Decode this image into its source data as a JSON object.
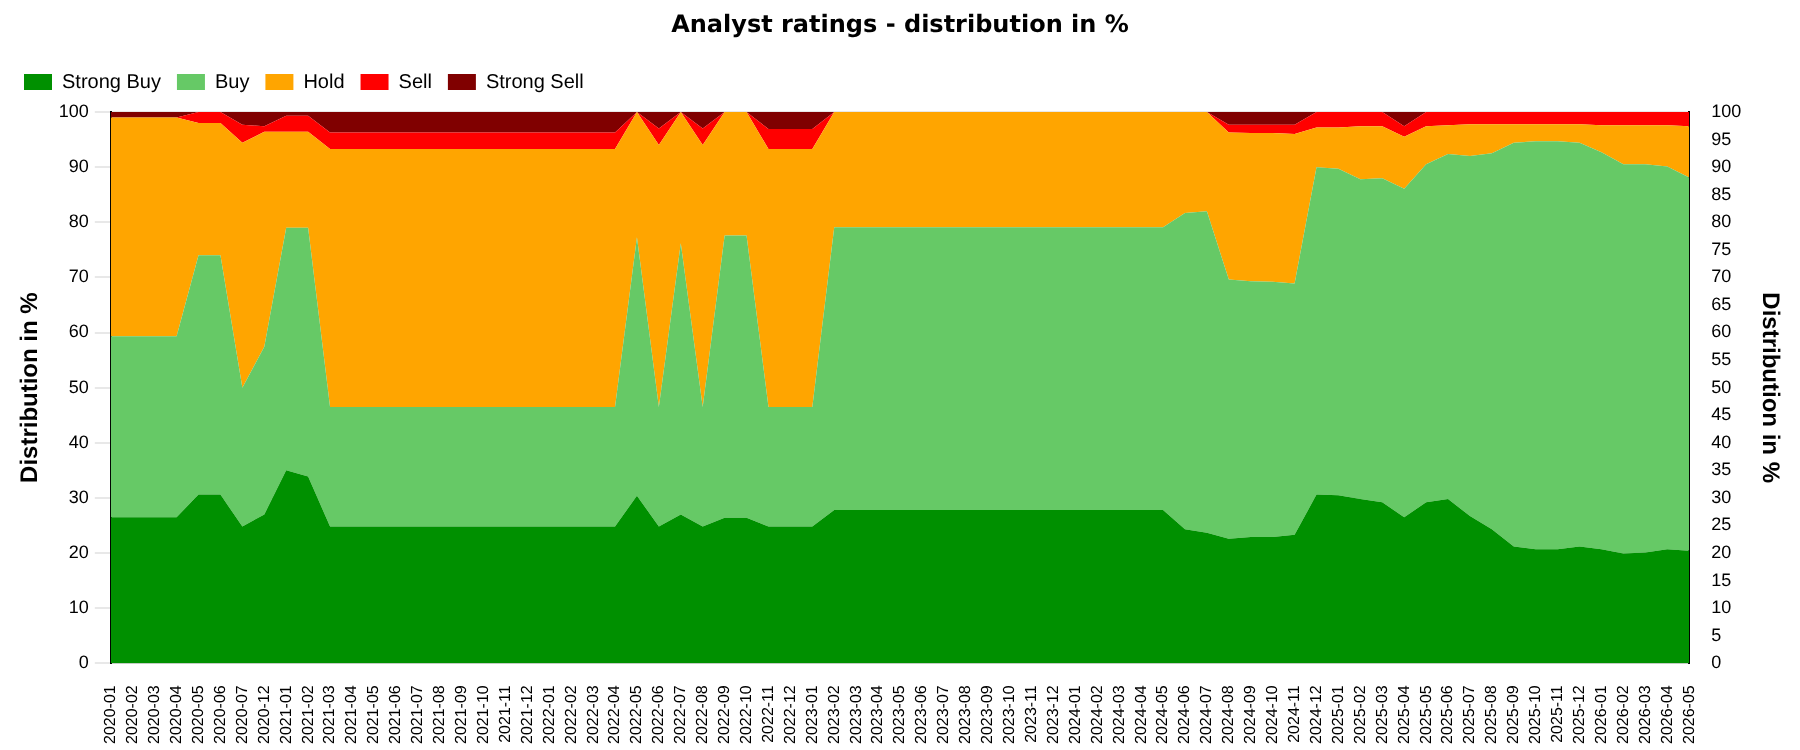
{
  "chart_data": {
    "type": "area",
    "title": "Analyst ratings - distribution in %",
    "ylabel": "Distribution in %",
    "y2label": "Distribution in %",
    "categories": [
      "2020-01",
      "2020-02",
      "2020-03",
      "2020-04",
      "2020-05",
      "2020-06",
      "2020-07",
      "2020-12",
      "2021-01",
      "2021-02",
      "2021-03",
      "2021-04",
      "2021-05",
      "2021-06",
      "2021-07",
      "2021-08",
      "2021-09",
      "2021-10",
      "2021-11",
      "2021-12",
      "2022-01",
      "2022-02",
      "2022-03",
      "2022-04",
      "2022-05",
      "2022-06",
      "2022-07",
      "2022-08",
      "2022-09",
      "2022-10",
      "2022-11",
      "2022-12",
      "2023-01",
      "2023-02",
      "2023-03",
      "2023-04",
      "2023-05",
      "2023-06",
      "2023-07",
      "2023-08",
      "2023-09",
      "2023-10",
      "2023-11",
      "2023-12",
      "2024-01",
      "2024-02",
      "2024-03",
      "2024-04",
      "2024-05",
      "2024-06",
      "2024-07",
      "2024-08",
      "2024-09",
      "2024-10",
      "2024-11",
      "2024-12",
      "2025-01",
      "2025-02",
      "2025-03",
      "2025-04",
      "2025-05",
      "2025-06",
      "2025-07",
      "2025-08",
      "2025-09",
      "2025-10",
      "2025-11",
      "2025-12",
      "2026-01",
      "2026-02",
      "2026-03",
      "2026-04",
      "2026-05"
    ],
    "series": [
      {
        "name": "Strong Buy",
        "color": "#009000",
        "values": [
          26.5,
          26.5,
          26.5,
          26.5,
          30.6,
          30.6,
          24.8,
          27,
          35,
          33.9,
          24.8,
          24.8,
          24.8,
          24.8,
          24.8,
          24.8,
          24.8,
          24.8,
          24.8,
          24.8,
          24.8,
          24.8,
          24.8,
          24.8,
          30.4,
          24.8,
          27,
          24.8,
          26.4,
          26.4,
          24.8,
          24.8,
          24.8,
          27.8,
          27.8,
          27.8,
          27.8,
          27.8,
          27.8,
          27.8,
          27.8,
          27.8,
          27.8,
          27.8,
          27.8,
          27.8,
          27.8,
          27.8,
          27.8,
          24.3,
          23.7,
          22.6,
          22.9,
          22.9,
          23.3,
          30.6,
          30.5,
          29.8,
          29.2,
          26.5,
          29.2,
          29.8,
          26.7,
          24.3,
          21.2,
          20.7,
          20.7,
          21.2,
          20.7,
          19.9,
          20.1,
          20.7,
          20.4
        ]
      },
      {
        "name": "Buy",
        "color": "#66c966",
        "values": [
          32.8,
          32.8,
          32.8,
          32.8,
          43.4,
          43.4,
          25.2,
          30.4,
          44,
          45.1,
          21.7,
          21.7,
          21.7,
          21.7,
          21.7,
          21.7,
          21.7,
          21.7,
          21.7,
          21.7,
          21.7,
          21.7,
          21.7,
          21.7,
          46.9,
          21.7,
          49.2,
          21.7,
          51.2,
          51.2,
          21.7,
          21.7,
          21.7,
          51.3,
          51.3,
          51.3,
          51.3,
          51.3,
          51.3,
          51.3,
          51.3,
          51.3,
          51.3,
          51.3,
          51.3,
          51.3,
          51.3,
          51.3,
          51.3,
          57.4,
          58.3,
          47,
          46.4,
          46.3,
          45.6,
          59.4,
          59.2,
          58,
          58.8,
          59.6,
          61.3,
          62.6,
          65.3,
          68.2,
          73.2,
          74,
          74,
          73.2,
          72,
          70.6,
          70.4,
          69.4,
          67.7
        ]
      },
      {
        "name": "Hold",
        "color": "#ffa500",
        "values": [
          39.7,
          39.7,
          39.7,
          39.7,
          24,
          24,
          44.4,
          39,
          17.4,
          17.4,
          46.8,
          46.8,
          46.8,
          46.8,
          46.8,
          46.8,
          46.8,
          46.8,
          46.8,
          46.8,
          46.8,
          46.8,
          46.8,
          46.8,
          22.7,
          47.5,
          23.8,
          47.5,
          22.4,
          22.4,
          46.8,
          46.8,
          46.8,
          20.9,
          20.9,
          20.9,
          20.9,
          20.9,
          20.9,
          20.9,
          20.9,
          20.9,
          20.9,
          20.9,
          20.9,
          20.9,
          20.9,
          20.9,
          20.9,
          18.3,
          18,
          26.7,
          26.9,
          27,
          27.1,
          7.2,
          7.5,
          9.6,
          9.4,
          9.4,
          6.9,
          5.2,
          5.8,
          5.3,
          3.4,
          3.1,
          3.1,
          3.4,
          4.9,
          7.1,
          7.1,
          7.5,
          9.3
        ]
      },
      {
        "name": "Sell",
        "color": "#ff0000",
        "values": [
          0,
          0,
          0,
          0,
          2,
          2,
          3.3,
          1,
          2.9,
          2.9,
          3,
          3,
          3,
          3,
          3,
          3,
          3,
          3,
          3,
          3,
          3,
          3,
          3,
          3,
          0,
          3,
          0,
          3,
          0,
          0,
          3.6,
          3.6,
          3.6,
          0,
          0,
          0,
          0,
          0,
          0,
          0,
          0,
          0,
          0,
          0,
          0,
          0,
          0,
          0,
          0,
          0,
          0,
          1.4,
          1.5,
          1.5,
          1.7,
          2.8,
          2.8,
          2.6,
          2.6,
          1.9,
          2.6,
          2.4,
          2.2,
          2.2,
          2.2,
          2.2,
          2.2,
          2.2,
          2.4,
          2.4,
          2.4,
          2.4,
          2.6
        ]
      },
      {
        "name": "Strong Sell",
        "color": "#800000",
        "values": [
          1,
          1,
          1,
          1,
          0,
          0,
          2.3,
          2.6,
          0.7,
          0.7,
          3.7,
          3.7,
          3.7,
          3.7,
          3.7,
          3.7,
          3.7,
          3.7,
          3.7,
          3.7,
          3.7,
          3.7,
          3.7,
          3.7,
          0,
          3,
          0,
          3,
          0,
          0,
          3.1,
          3.1,
          3.1,
          0,
          0,
          0,
          0,
          0,
          0,
          0,
          0,
          0,
          0,
          0,
          0,
          0,
          0,
          0,
          0,
          0,
          0,
          2.3,
          2.3,
          2.3,
          2.3,
          0,
          0,
          0,
          0,
          2.6,
          0,
          0,
          0,
          0,
          0,
          0,
          0,
          0,
          0,
          0,
          0,
          0,
          0
        ]
      }
    ],
    "stacked": true,
    "ylim": [
      0,
      100
    ],
    "yticks": [
      0,
      10,
      20,
      30,
      40,
      50,
      60,
      70,
      80,
      90,
      100
    ],
    "y2lim": [
      0,
      100
    ],
    "y2ticks": [
      0,
      5,
      10,
      15,
      20,
      25,
      30,
      35,
      40,
      45,
      50,
      55,
      60,
      65,
      70,
      75,
      80,
      85,
      90,
      95,
      100
    ],
    "grid": "y",
    "legend": "top left"
  }
}
